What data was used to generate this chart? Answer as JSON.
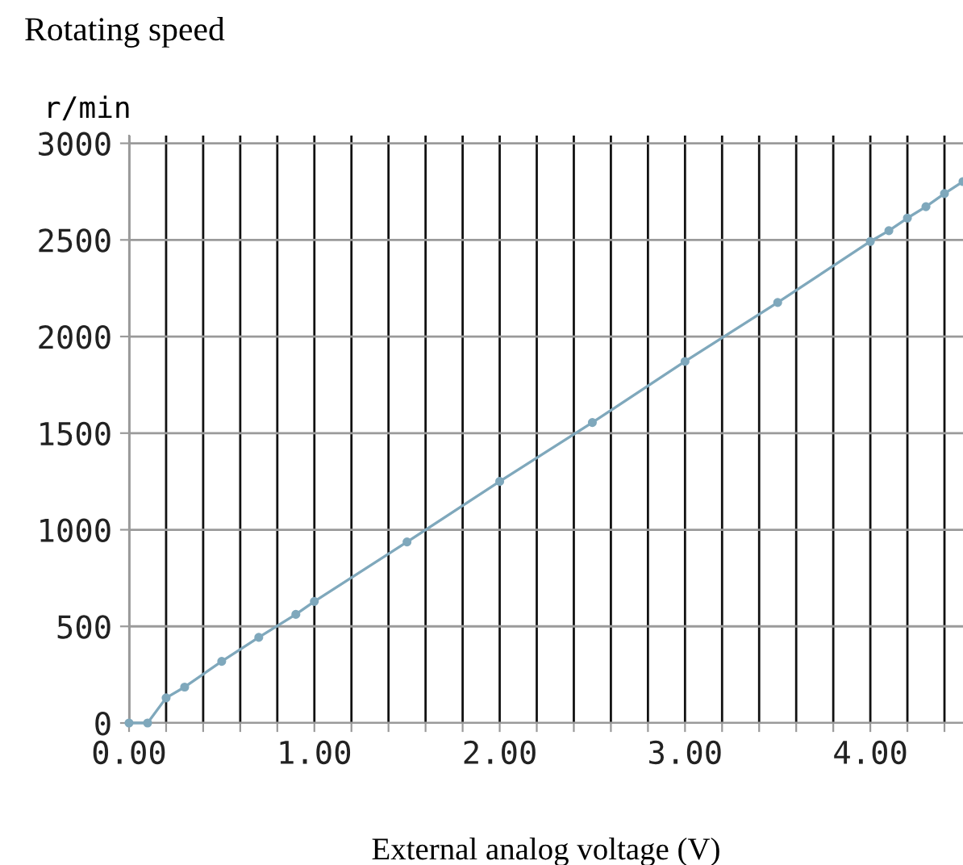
{
  "chart_data": {
    "type": "line",
    "title": "Rotating speed",
    "xlabel": "External analog voltage (V)",
    "ylabel": "r/min",
    "x": [
      0,
      0.1,
      0.2,
      0.3,
      0.5,
      0.7,
      0.9,
      1.0,
      1.5,
      2.0,
      2.5,
      3.0,
      3.5,
      4.0,
      4.1,
      4.2,
      4.3,
      4.4,
      4.5
    ],
    "series": [
      {
        "color": "#7fa8bc",
        "values": [
          0,
          0,
          130,
          186,
          319,
          443,
          562,
          629,
          937,
          1250,
          1555,
          1871,
          2176,
          2492,
          2548,
          2613,
          2672,
          2740,
          2802
        ]
      }
    ],
    "xlim": [
      0,
      4.5
    ],
    "ylim": [
      0,
      3040
    ],
    "xticks": [
      {
        "value": 0,
        "label": "0.00"
      },
      {
        "value": 0.2,
        "label": null
      },
      {
        "value": 0.4,
        "label": null
      },
      {
        "value": 0.6,
        "label": null
      },
      {
        "value": 0.8,
        "label": null
      },
      {
        "value": 1,
        "label": "1.00"
      },
      {
        "value": 1.2,
        "label": null
      },
      {
        "value": 1.4,
        "label": null
      },
      {
        "value": 1.6,
        "label": null
      },
      {
        "value": 1.8,
        "label": null
      },
      {
        "value": 2,
        "label": "2.00"
      },
      {
        "value": 2.2,
        "label": null
      },
      {
        "value": 2.4,
        "label": null
      },
      {
        "value": 2.6,
        "label": null
      },
      {
        "value": 2.8,
        "label": null
      },
      {
        "value": 3,
        "label": "3.00"
      },
      {
        "value": 3.2,
        "label": null
      },
      {
        "value": 3.4,
        "label": null
      },
      {
        "value": 3.6,
        "label": null
      },
      {
        "value": 3.8,
        "label": null
      },
      {
        "value": 4,
        "label": "4.00"
      },
      {
        "value": 4.2,
        "label": null
      },
      {
        "value": 4.4,
        "label": null
      }
    ],
    "yticks": [
      0,
      500,
      1000,
      1500,
      2000,
      2500,
      3000
    ],
    "grid": true,
    "marker": "circle",
    "line_style": "solid"
  }
}
